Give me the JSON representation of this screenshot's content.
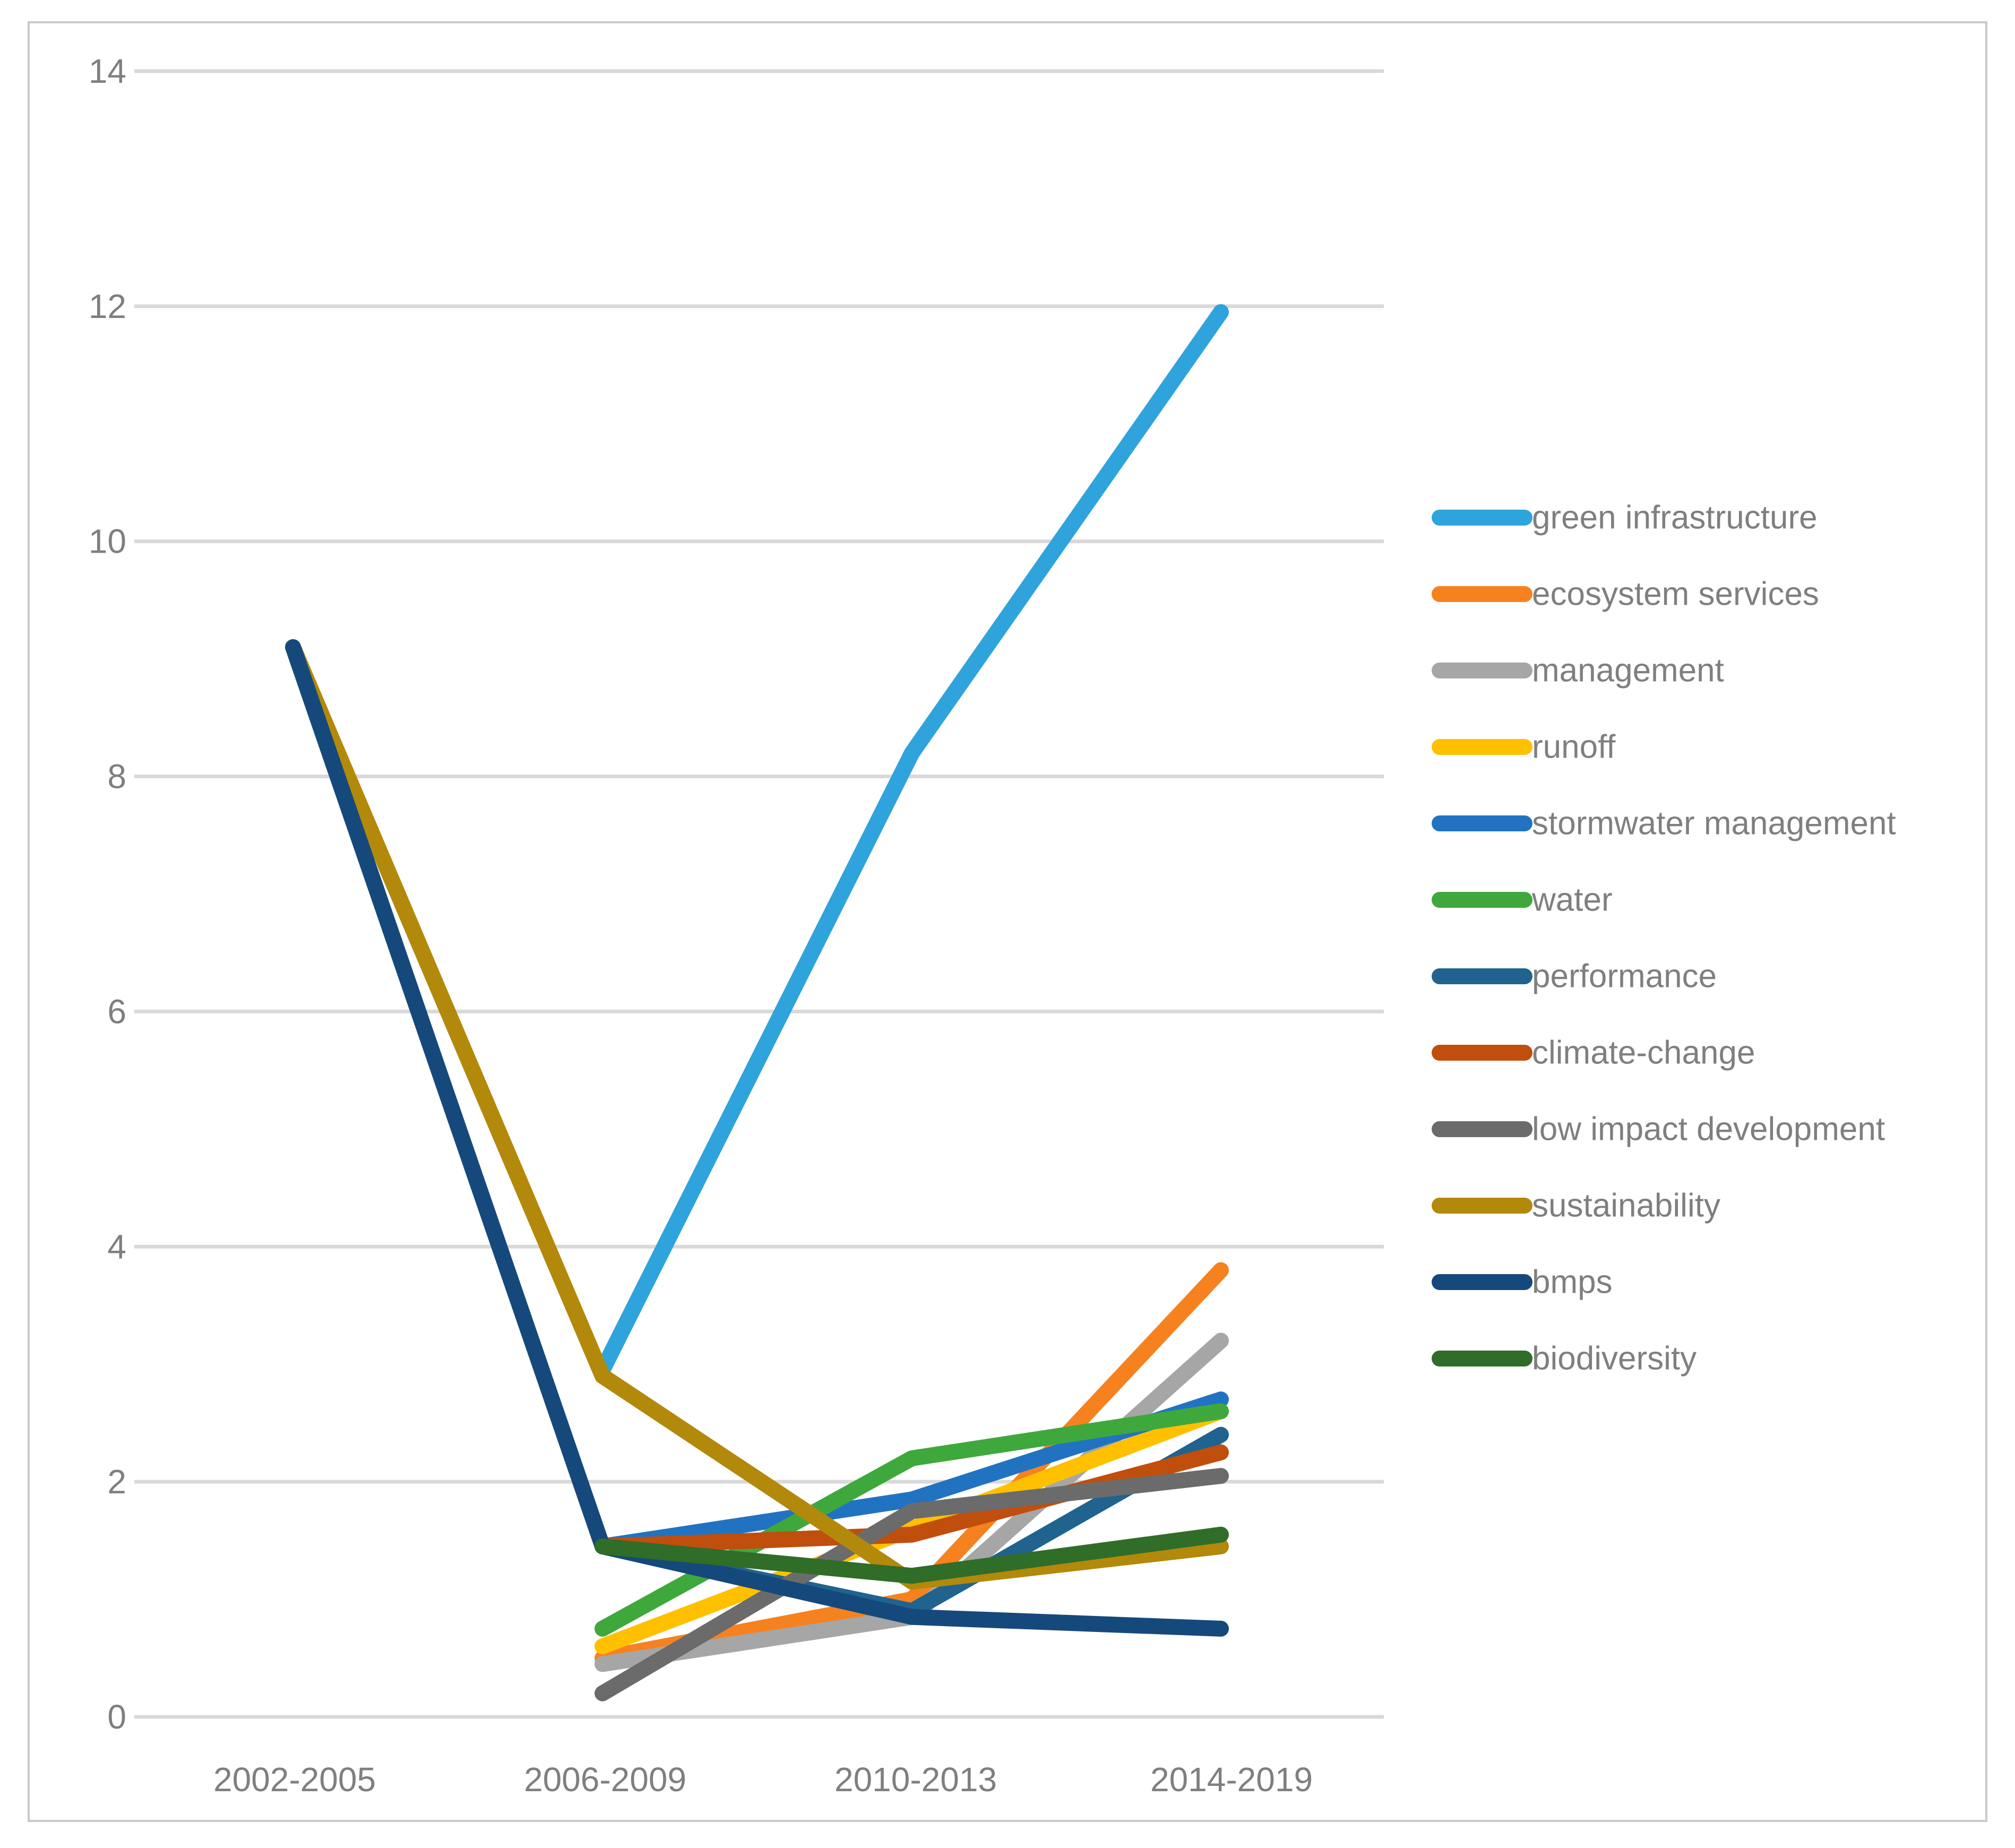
{
  "chart_data": {
    "type": "line",
    "title": "",
    "xlabel": "",
    "ylabel": "",
    "categories": [
      "2002-2005",
      "2006-2009",
      "2010-2013",
      "2014-2019"
    ],
    "y_ticks": [
      "0",
      "2",
      "4",
      "6",
      "8",
      "10",
      "12",
      "14"
    ],
    "ylim": [
      0,
      14
    ],
    "grid": "horizontal",
    "legend_position": "right",
    "axis_text_color": "#7f7f7f",
    "gridline_color": "#d9d9d9",
    "series": [
      {
        "name": "green infrastructure",
        "color": "#2fa3dc",
        "values": [
          null,
          2.95,
          8.2,
          11.95
        ]
      },
      {
        "name": "ecosystem services",
        "color": "#f6821f",
        "values": [
          null,
          0.5,
          1.0,
          3.8
        ]
      },
      {
        "name": "management",
        "color": "#a6a6a6",
        "values": [
          null,
          0.45,
          0.85,
          3.2
        ]
      },
      {
        "name": "runoff",
        "color": "#ffc000",
        "values": [
          null,
          0.6,
          1.6,
          2.6
        ]
      },
      {
        "name": "stormwater management",
        "color": "#2173c2",
        "values": [
          null,
          1.45,
          1.85,
          2.7
        ]
      },
      {
        "name": "water",
        "color": "#3fa83c",
        "values": [
          null,
          0.75,
          2.2,
          2.6
        ]
      },
      {
        "name": "performance",
        "color": "#20638f",
        "values": [
          null,
          1.45,
          0.9,
          2.4
        ]
      },
      {
        "name": "climate-change",
        "color": "#c04e0d",
        "values": [
          null,
          1.45,
          1.55,
          2.25
        ]
      },
      {
        "name": "low impact development",
        "color": "#6b6b6b",
        "values": [
          null,
          0.2,
          1.75,
          2.05
        ]
      },
      {
        "name": "sustainability",
        "color": "#b3890b",
        "values": [
          9.1,
          2.9,
          1.15,
          1.45
        ]
      },
      {
        "name": "bmps",
        "color": "#15497b",
        "values": [
          9.1,
          1.45,
          0.85,
          0.75
        ]
      },
      {
        "name": "biodiversity",
        "color": "#2f6d28",
        "values": [
          null,
          1.45,
          1.2,
          1.55
        ]
      }
    ]
  }
}
